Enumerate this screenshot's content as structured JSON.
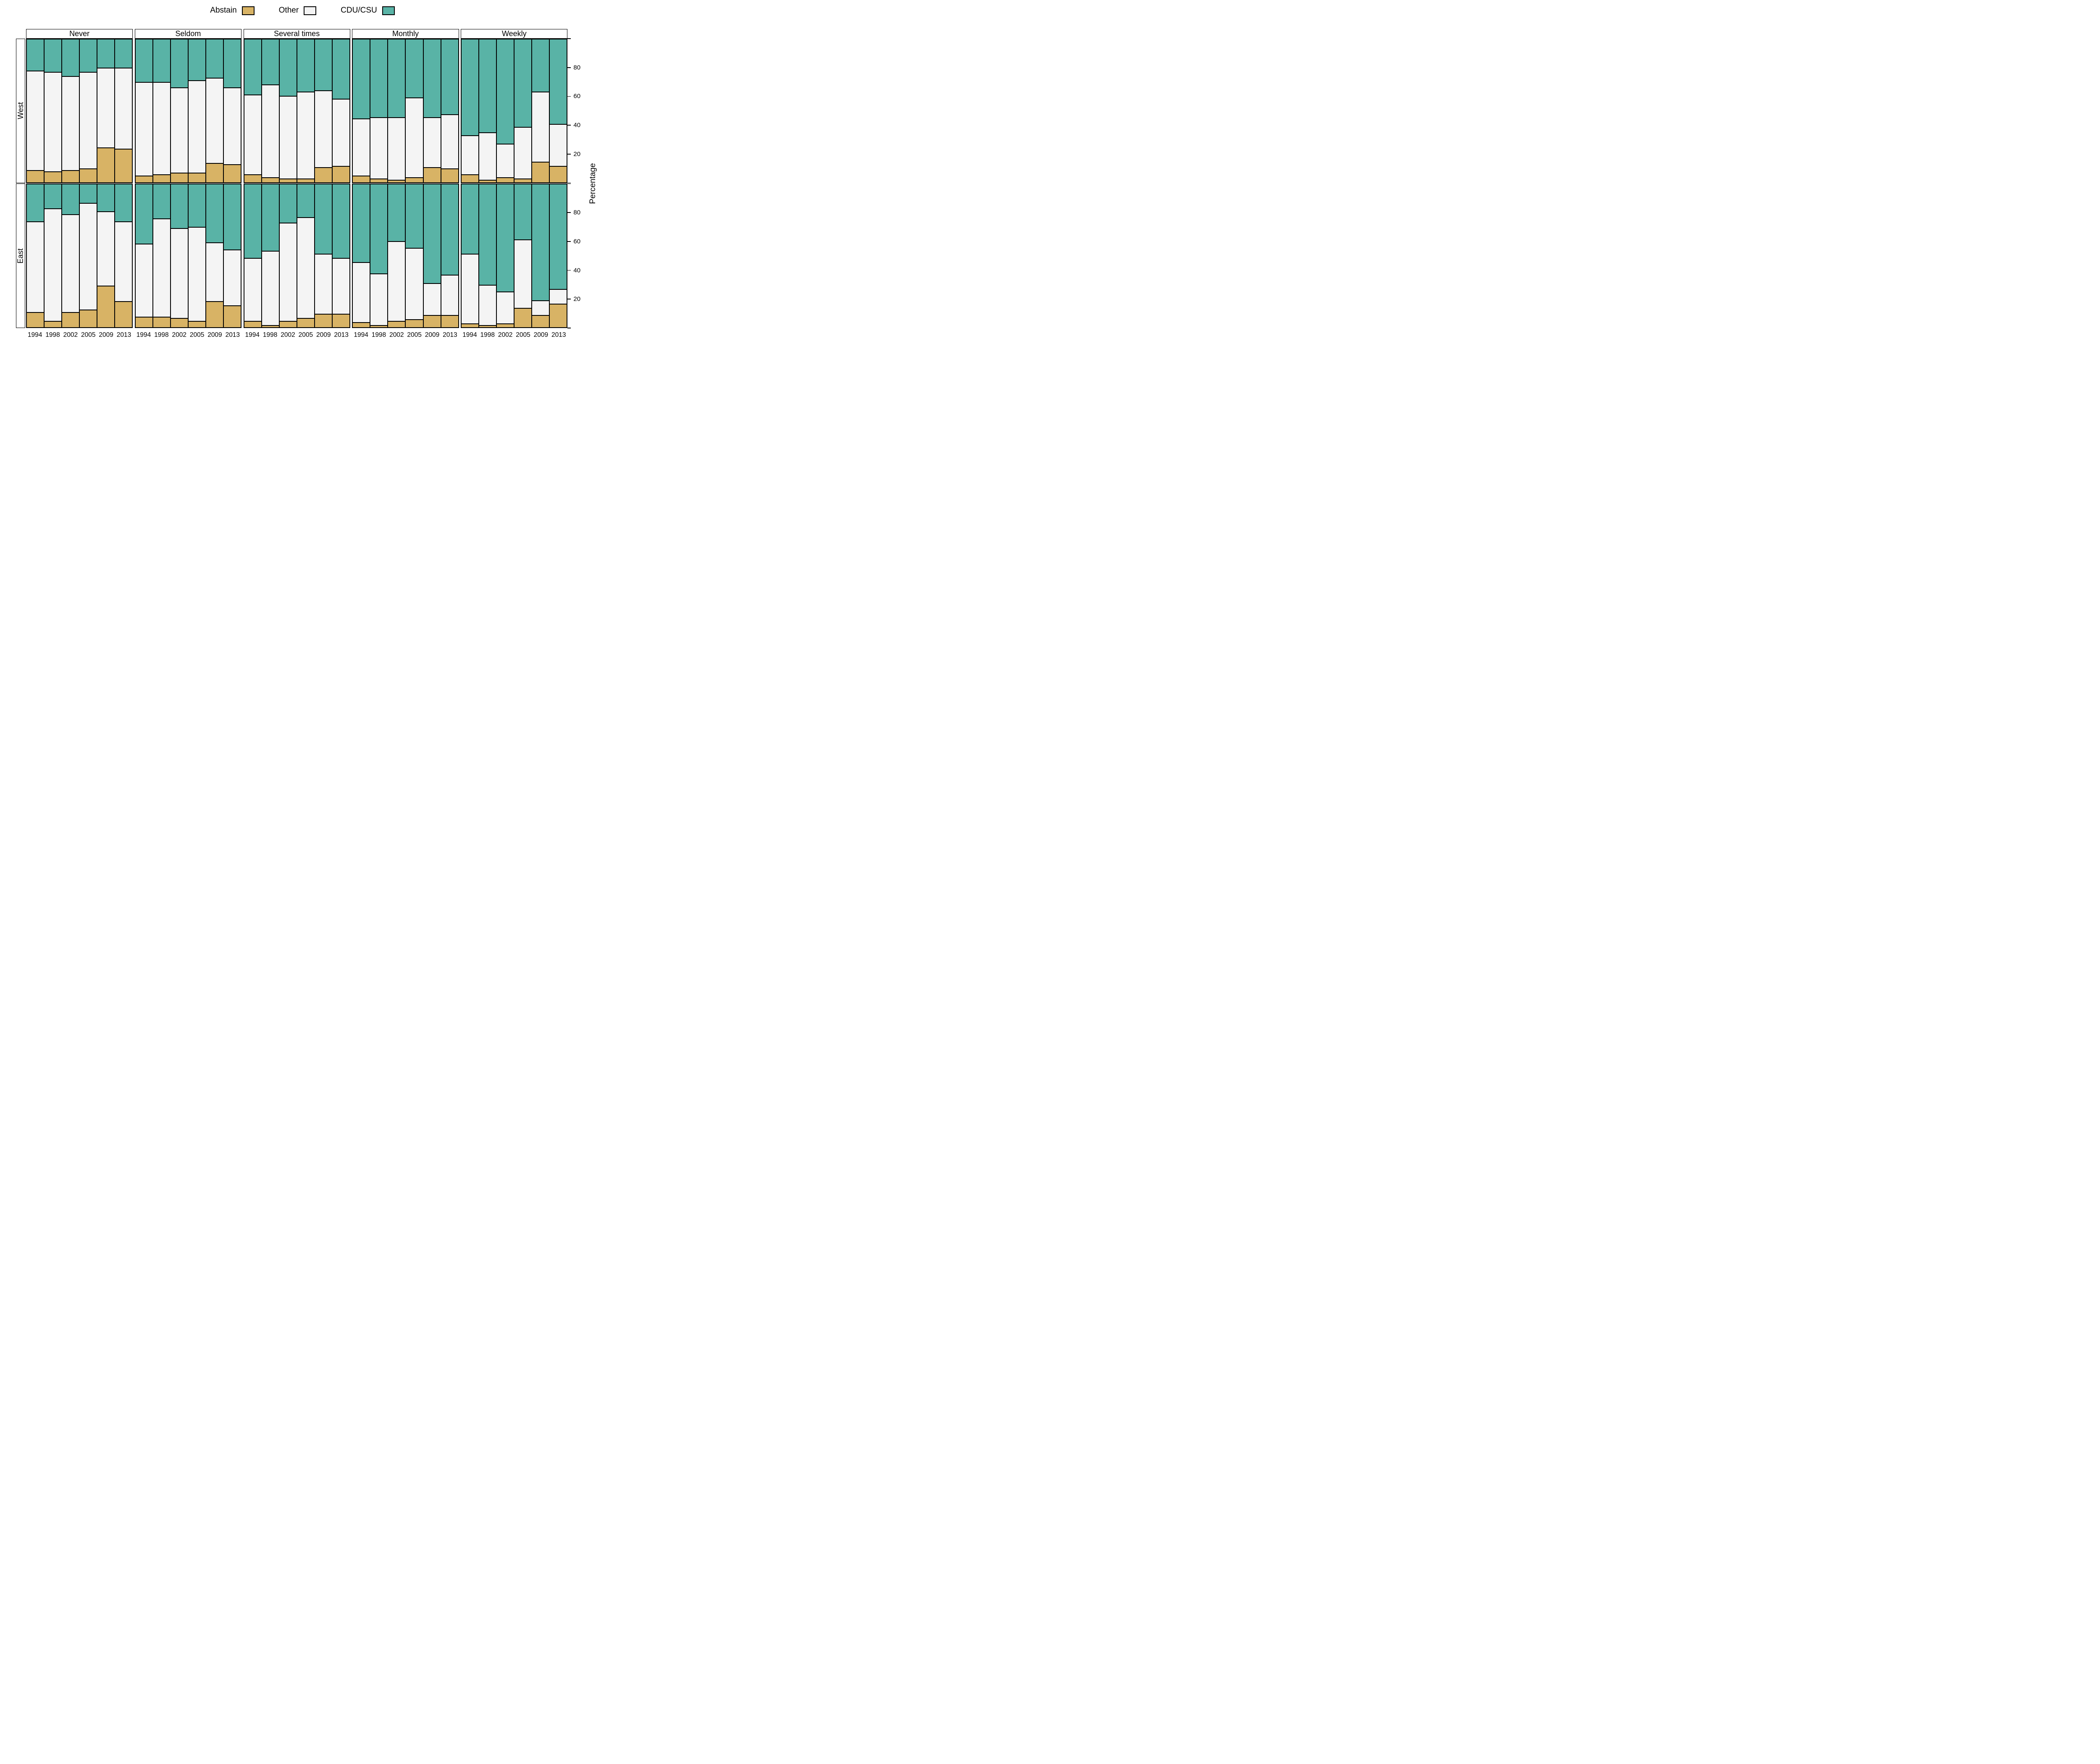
{
  "chart_data": {
    "type": "bar",
    "stacked": true,
    "units": "percent",
    "ylabel": "Percentage",
    "yticks_labeled": [
      20,
      40,
      60,
      80
    ],
    "yticks_all": [
      0,
      20,
      40,
      60,
      80,
      100
    ],
    "ylim": [
      0,
      100
    ],
    "row_facets": [
      "West",
      "East"
    ],
    "col_facets": [
      "Never",
      "Seldom",
      "Several times",
      "Monthly",
      "Weekly"
    ],
    "x_categories": [
      "1994",
      "1998",
      "2002",
      "2005",
      "2009",
      "2013"
    ],
    "series": [
      {
        "name": "Abstain",
        "color": "#D8B365"
      },
      {
        "name": "Other",
        "color": "#F4F4F4"
      },
      {
        "name": "CDU/CSU",
        "color": "#59B3A6"
      }
    ],
    "legend_position": "top",
    "grid": false,
    "panels": [
      {
        "row": "West",
        "col": "Never",
        "values": {
          "Abstain": [
            8,
            7,
            8,
            9,
            24,
            23
          ],
          "Other": [
            70,
            70,
            66,
            68,
            56,
            57
          ],
          "CDU/CSU": [
            22,
            23,
            26,
            23,
            20,
            20
          ]
        }
      },
      {
        "row": "West",
        "col": "Seldom",
        "values": {
          "Abstain": [
            4,
            5,
            6,
            6,
            13,
            12
          ],
          "Other": [
            66,
            65,
            60,
            65,
            60,
            54
          ],
          "CDU/CSU": [
            30,
            30,
            34,
            29,
            27,
            34
          ]
        }
      },
      {
        "row": "West",
        "col": "Several times",
        "values": {
          "Abstain": [
            5,
            3,
            2,
            2,
            10,
            11
          ],
          "Other": [
            56,
            65,
            58,
            61,
            54,
            47
          ],
          "CDU/CSU": [
            39,
            32,
            40,
            37,
            36,
            42
          ]
        }
      },
      {
        "row": "West",
        "col": "Monthly",
        "values": {
          "Abstain": [
            4,
            2,
            1,
            3,
            10,
            9
          ],
          "Other": [
            40,
            43,
            44,
            56,
            35,
            38
          ],
          "CDU/CSU": [
            56,
            55,
            55,
            41,
            55,
            53
          ]
        }
      },
      {
        "row": "West",
        "col": "Weekly",
        "values": {
          "Abstain": [
            5,
            1,
            3,
            2,
            14,
            11
          ],
          "Other": [
            27,
            33,
            23,
            36,
            49,
            29
          ],
          "CDU/CSU": [
            68,
            66,
            74,
            62,
            37,
            60
          ]
        }
      },
      {
        "row": "East",
        "col": "Never",
        "values": {
          "Abstain": [
            10,
            4,
            10,
            12,
            29,
            18
          ],
          "Other": [
            64,
            79,
            69,
            75,
            52,
            56
          ],
          "CDU/CSU": [
            26,
            17,
            21,
            13,
            19,
            26
          ]
        }
      },
      {
        "row": "East",
        "col": "Seldom",
        "values": {
          "Abstain": [
            7,
            7,
            6,
            4,
            18,
            15
          ],
          "Other": [
            51,
            69,
            63,
            66,
            41,
            39
          ],
          "CDU/CSU": [
            42,
            24,
            31,
            30,
            41,
            46
          ]
        }
      },
      {
        "row": "East",
        "col": "Several times",
        "values": {
          "Abstain": [
            4,
            1,
            4,
            6,
            9,
            9
          ],
          "Other": [
            44,
            52,
            69,
            71,
            42,
            39
          ],
          "CDU/CSU": [
            52,
            47,
            27,
            23,
            49,
            52
          ]
        }
      },
      {
        "row": "East",
        "col": "Monthly",
        "values": {
          "Abstain": [
            3,
            1,
            4,
            5,
            8,
            8
          ],
          "Other": [
            42,
            36,
            56,
            50,
            22,
            28
          ],
          "CDU/CSU": [
            55,
            63,
            40,
            45,
            70,
            64
          ]
        }
      },
      {
        "row": "East",
        "col": "Weekly",
        "values": {
          "Abstain": [
            2,
            1,
            2,
            13,
            8,
            16
          ],
          "Other": [
            49,
            28,
            22,
            48,
            10,
            10
          ],
          "CDU/CSU": [
            49,
            71,
            76,
            39,
            82,
            74
          ]
        }
      }
    ]
  }
}
